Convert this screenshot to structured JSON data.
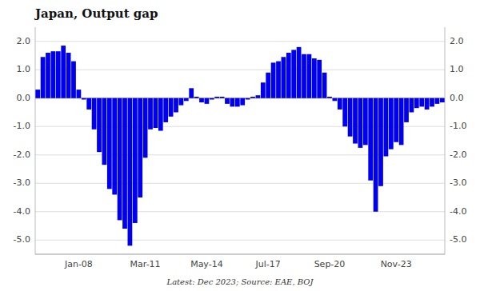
{
  "chart_data": {
    "type": "bar",
    "title": "Japan, Output gap",
    "subtitle": "Latest: Dec 2023; Source: EAE, BOJ",
    "color": "#0000EE",
    "grid": true,
    "ylim": [
      -5.5,
      2.5
    ],
    "yticks": [
      {
        "value": -5.0,
        "label": "-5.0"
      },
      {
        "value": -4.0,
        "label": "-4.0"
      },
      {
        "value": -3.0,
        "label": "-3.0"
      },
      {
        "value": -2.0,
        "label": "-2.0"
      },
      {
        "value": -1.0,
        "label": "-1.0"
      },
      {
        "value": 0.0,
        "label": "0.0"
      },
      {
        "value": 1.0,
        "label": "1.0"
      },
      {
        "value": 2.0,
        "label": "2.0"
      }
    ],
    "categories": [
      null,
      null,
      null,
      null,
      null,
      null,
      null,
      null,
      "Jan-08",
      null,
      null,
      null,
      null,
      null,
      null,
      null,
      null,
      null,
      null,
      null,
      null,
      "Mar-11",
      null,
      null,
      null,
      null,
      null,
      null,
      null,
      null,
      null,
      null,
      null,
      "May-14",
      null,
      null,
      null,
      null,
      null,
      null,
      null,
      null,
      null,
      null,
      null,
      "Jul-17",
      null,
      null,
      null,
      null,
      null,
      null,
      null,
      null,
      null,
      null,
      null,
      "Sep-20",
      null,
      null,
      null,
      null,
      null,
      null,
      null,
      null,
      null,
      null,
      null,
      null,
      "Nov-23",
      null,
      null,
      null,
      null,
      null,
      null,
      null,
      null,
      null
    ],
    "values": [
      0.3,
      1.45,
      1.6,
      1.65,
      1.65,
      1.85,
      1.6,
      1.3,
      0.3,
      -0.05,
      -0.4,
      -1.1,
      -1.9,
      -2.35,
      -3.2,
      -3.4,
      -4.3,
      -4.6,
      -5.2,
      -4.4,
      -3.5,
      -2.1,
      -1.1,
      -1.05,
      -1.15,
      -0.85,
      -0.65,
      -0.5,
      -0.25,
      -0.1,
      0.35,
      0.05,
      -0.15,
      -0.2,
      -0.05,
      0.05,
      0.05,
      -0.2,
      -0.3,
      -0.3,
      -0.25,
      -0.05,
      0.05,
      0.1,
      0.55,
      0.9,
      1.25,
      1.3,
      1.45,
      1.6,
      1.7,
      1.8,
      1.55,
      1.55,
      1.4,
      1.35,
      0.9,
      0.05,
      -0.1,
      -0.4,
      -1.0,
      -1.35,
      -1.6,
      -1.75,
      -1.65,
      -2.9,
      -4.0,
      -3.1,
      -2.05,
      -1.8,
      -1.55,
      -1.65,
      -0.85,
      -0.5,
      -0.35,
      -0.3,
      -0.4,
      -0.3,
      -0.2,
      -0.15
    ]
  }
}
